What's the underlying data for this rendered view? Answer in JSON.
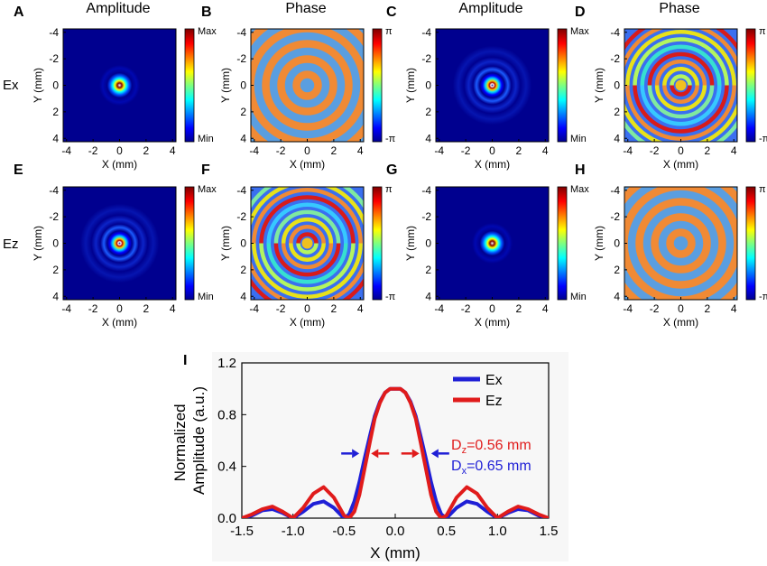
{
  "figure": {
    "column_titles": [
      "Amplitude",
      "Phase",
      "Amplitude",
      "Phase"
    ],
    "row_labels": [
      "Ex",
      "Ez"
    ]
  },
  "panels": [
    {
      "letter": "A",
      "kind": "amplitude",
      "variant": "ex-small",
      "cb_top": "Max",
      "cb_bottom": "Min"
    },
    {
      "letter": "B",
      "kind": "phase",
      "variant": "rings-plain",
      "cb_top": "π",
      "cb_bottom": "-π"
    },
    {
      "letter": "C",
      "kind": "amplitude",
      "variant": "ring-bright",
      "cb_top": "Max",
      "cb_bottom": "Min"
    },
    {
      "letter": "D",
      "kind": "phase",
      "variant": "rings-split",
      "cb_top": "π",
      "cb_bottom": "-π"
    },
    {
      "letter": "E",
      "kind": "amplitude",
      "variant": "ring-bright",
      "cb_top": "Max",
      "cb_bottom": "Min"
    },
    {
      "letter": "F",
      "kind": "phase",
      "variant": "rings-split",
      "cb_top": "π",
      "cb_bottom": "-π"
    },
    {
      "letter": "G",
      "kind": "amplitude",
      "variant": "ex-small",
      "cb_top": "Max",
      "cb_bottom": "Min"
    },
    {
      "letter": "H",
      "kind": "phase",
      "variant": "rings-plain",
      "cb_top": "π",
      "cb_bottom": "-π"
    }
  ],
  "map_axes": {
    "xlabel": "X (mm)",
    "ylabel": "Y (mm)",
    "x_ticks": [
      -4,
      -2,
      0,
      2,
      4
    ],
    "y_ticks": [
      -4,
      -2,
      0,
      2,
      4
    ]
  },
  "colors": {
    "ex": "#1f1fd6",
    "ez": "#e01b1b",
    "jet_dark": "#00008f",
    "phase_orange": "#f08a35",
    "phase_blue": "#5a9ee0"
  },
  "chart_data": {
    "type": "line",
    "panel_letter": "I",
    "title": "",
    "xlabel": "X (mm)",
    "ylabel": "Normalized Amplitude (a.u.)",
    "ylabel_lines": [
      "Normalized",
      "Amplitude (a.u.)"
    ],
    "xlim": [
      -1.5,
      1.5
    ],
    "ylim": [
      0,
      1.2
    ],
    "x_ticks": [
      -1.5,
      -1.0,
      -0.5,
      0.0,
      0.5,
      1.0,
      1.5
    ],
    "y_ticks": [
      0.0,
      0.4,
      0.8,
      1.2
    ],
    "x_tick_labels": [
      "-1.5",
      "-1.0",
      "-0.5",
      "0.0",
      "0.5",
      "1.0",
      "1.5"
    ],
    "y_tick_labels": [
      "0.0",
      "0.4",
      "0.8",
      "1.2"
    ],
    "legend_position": "top-right",
    "series": [
      {
        "name": "Ex",
        "color": "#1f1fd6",
        "x": [
          -1.5,
          -1.4,
          -1.3,
          -1.2,
          -1.1,
          -1.0,
          -0.9,
          -0.8,
          -0.7,
          -0.6,
          -0.5,
          -0.45,
          -0.4,
          -0.35,
          -0.3,
          -0.25,
          -0.2,
          -0.15,
          -0.1,
          -0.05,
          0.0,
          0.05,
          0.1,
          0.15,
          0.2,
          0.25,
          0.3,
          0.35,
          0.4,
          0.45,
          0.5,
          0.6,
          0.7,
          0.8,
          0.9,
          1.0,
          1.1,
          1.2,
          1.3,
          1.4,
          1.5
        ],
        "y": [
          0.0,
          0.02,
          0.06,
          0.07,
          0.04,
          0.0,
          0.05,
          0.11,
          0.13,
          0.08,
          0.0,
          0.03,
          0.13,
          0.28,
          0.46,
          0.63,
          0.79,
          0.9,
          0.97,
          1.0,
          1.0,
          1.0,
          0.97,
          0.9,
          0.79,
          0.63,
          0.46,
          0.28,
          0.13,
          0.03,
          0.0,
          0.08,
          0.13,
          0.11,
          0.05,
          0.0,
          0.04,
          0.07,
          0.06,
          0.02,
          0.0
        ]
      },
      {
        "name": "Ez",
        "color": "#e01b1b",
        "x": [
          -1.5,
          -1.4,
          -1.3,
          -1.2,
          -1.1,
          -1.0,
          -0.9,
          -0.8,
          -0.7,
          -0.6,
          -0.5,
          -0.45,
          -0.4,
          -0.35,
          -0.3,
          -0.25,
          -0.2,
          -0.15,
          -0.1,
          -0.05,
          0.0,
          0.05,
          0.1,
          0.15,
          0.2,
          0.25,
          0.3,
          0.35,
          0.4,
          0.45,
          0.5,
          0.6,
          0.7,
          0.8,
          0.9,
          1.0,
          1.1,
          1.2,
          1.3,
          1.4,
          1.5
        ],
        "y": [
          0.0,
          0.03,
          0.07,
          0.09,
          0.05,
          0.0,
          0.08,
          0.19,
          0.24,
          0.16,
          0.02,
          0.0,
          0.05,
          0.18,
          0.38,
          0.58,
          0.77,
          0.89,
          0.97,
          1.0,
          1.0,
          1.0,
          0.97,
          0.89,
          0.77,
          0.58,
          0.38,
          0.18,
          0.05,
          0.0,
          0.02,
          0.16,
          0.24,
          0.19,
          0.08,
          0.0,
          0.05,
          0.09,
          0.07,
          0.03,
          0.0
        ]
      }
    ],
    "annotations": [
      {
        "main": "D",
        "sub": "z",
        "rest": "=0.56 mm",
        "color": "#e01b1b"
      },
      {
        "main": "D",
        "sub": "x",
        "rest": "=0.65 mm",
        "color": "#1f1fd6"
      }
    ],
    "fwhm_markers": [
      {
        "series": "Ex",
        "half_width": 0.325,
        "level": 0.5
      },
      {
        "series": "Ez",
        "half_width": 0.28,
        "level": 0.5
      }
    ]
  }
}
